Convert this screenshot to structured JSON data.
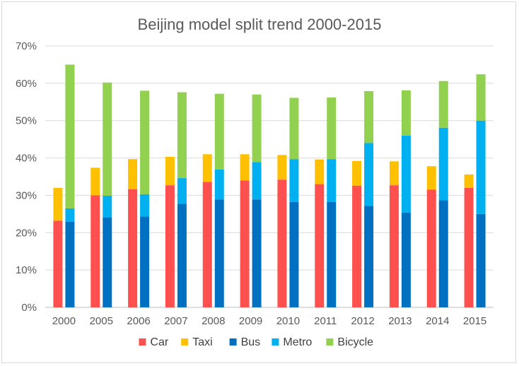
{
  "chart_data": {
    "type": "bar",
    "title": "Beijing model split trend 2000-2015",
    "categories": [
      "2000",
      "2005",
      "2006",
      "2007",
      "2008",
      "2009",
      "2010",
      "2011",
      "2012",
      "2013",
      "2014",
      "2015"
    ],
    "ylim": [
      0,
      70
    ],
    "yticks": [
      "0%",
      "10%",
      "20%",
      "30%",
      "40%",
      "50%",
      "60%",
      "70%"
    ],
    "grid": true,
    "legend_position": "bottom",
    "stacks": [
      {
        "name": "car-taxi",
        "series": [
          "Car",
          "Taxi"
        ]
      },
      {
        "name": "bus-metro-bicycle",
        "series": [
          "Bus",
          "Metro",
          "Bicycle"
        ]
      }
    ],
    "series": [
      {
        "name": "Car",
        "color": "#ff5050",
        "stack": "car-taxi",
        "values": [
          23.2,
          30.0,
          31.6,
          32.7,
          33.6,
          34.0,
          34.2,
          33.0,
          32.6,
          32.7,
          31.5,
          32.0
        ]
      },
      {
        "name": "Taxi",
        "color": "#ffc000",
        "stack": "car-taxi",
        "values": [
          8.8,
          7.4,
          8.1,
          7.6,
          7.4,
          7.0,
          6.6,
          6.6,
          6.6,
          6.4,
          6.3,
          3.6
        ]
      },
      {
        "name": "Bus",
        "color": "#0070c0",
        "stack": "bus-metro-bicycle",
        "values": [
          22.9,
          24.1,
          24.3,
          27.7,
          28.9,
          28.9,
          28.2,
          28.2,
          27.2,
          25.4,
          28.7,
          25.0
        ]
      },
      {
        "name": "Metro",
        "color": "#00b0f0",
        "stack": "bus-metro-bicycle",
        "values": [
          3.6,
          5.8,
          6.0,
          6.9,
          8.0,
          10.0,
          11.5,
          11.5,
          16.8,
          20.6,
          19.4,
          25.0
        ]
      },
      {
        "name": "Bicycle",
        "color": "#92d050",
        "stack": "bus-metro-bicycle",
        "values": [
          38.5,
          30.3,
          27.7,
          23.0,
          20.3,
          18.1,
          16.4,
          16.5,
          13.9,
          12.1,
          12.5,
          12.4
        ]
      }
    ]
  }
}
